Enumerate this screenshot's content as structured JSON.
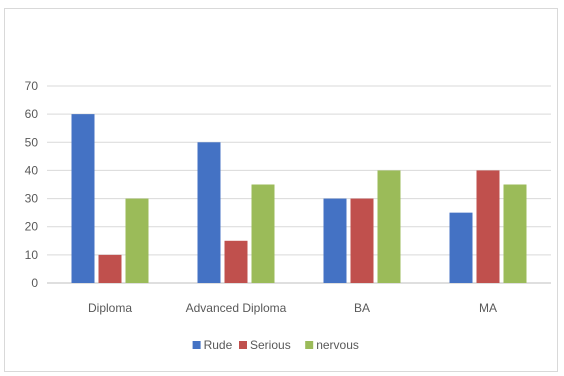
{
  "chart_data": {
    "type": "bar",
    "title": "",
    "xlabel": "",
    "ylabel": "",
    "categories": [
      "Diploma",
      "Advanced Diploma",
      "BA",
      "MA"
    ],
    "series": [
      {
        "name": "Rude",
        "values": [
          60,
          50,
          30,
          25
        ],
        "color": "#4472C4"
      },
      {
        "name": "Serious",
        "values": [
          10,
          15,
          30,
          40
        ],
        "color": "#C0504D"
      },
      {
        "name": "nervous",
        "values": [
          30,
          35,
          40,
          35
        ],
        "color": "#9BBB59"
      }
    ],
    "ylim": [
      0,
      70
    ],
    "yticks": [
      "0",
      "10",
      "20",
      "30",
      "40",
      "50",
      "60",
      "70"
    ],
    "grid": true,
    "legend_position": "bottom"
  }
}
